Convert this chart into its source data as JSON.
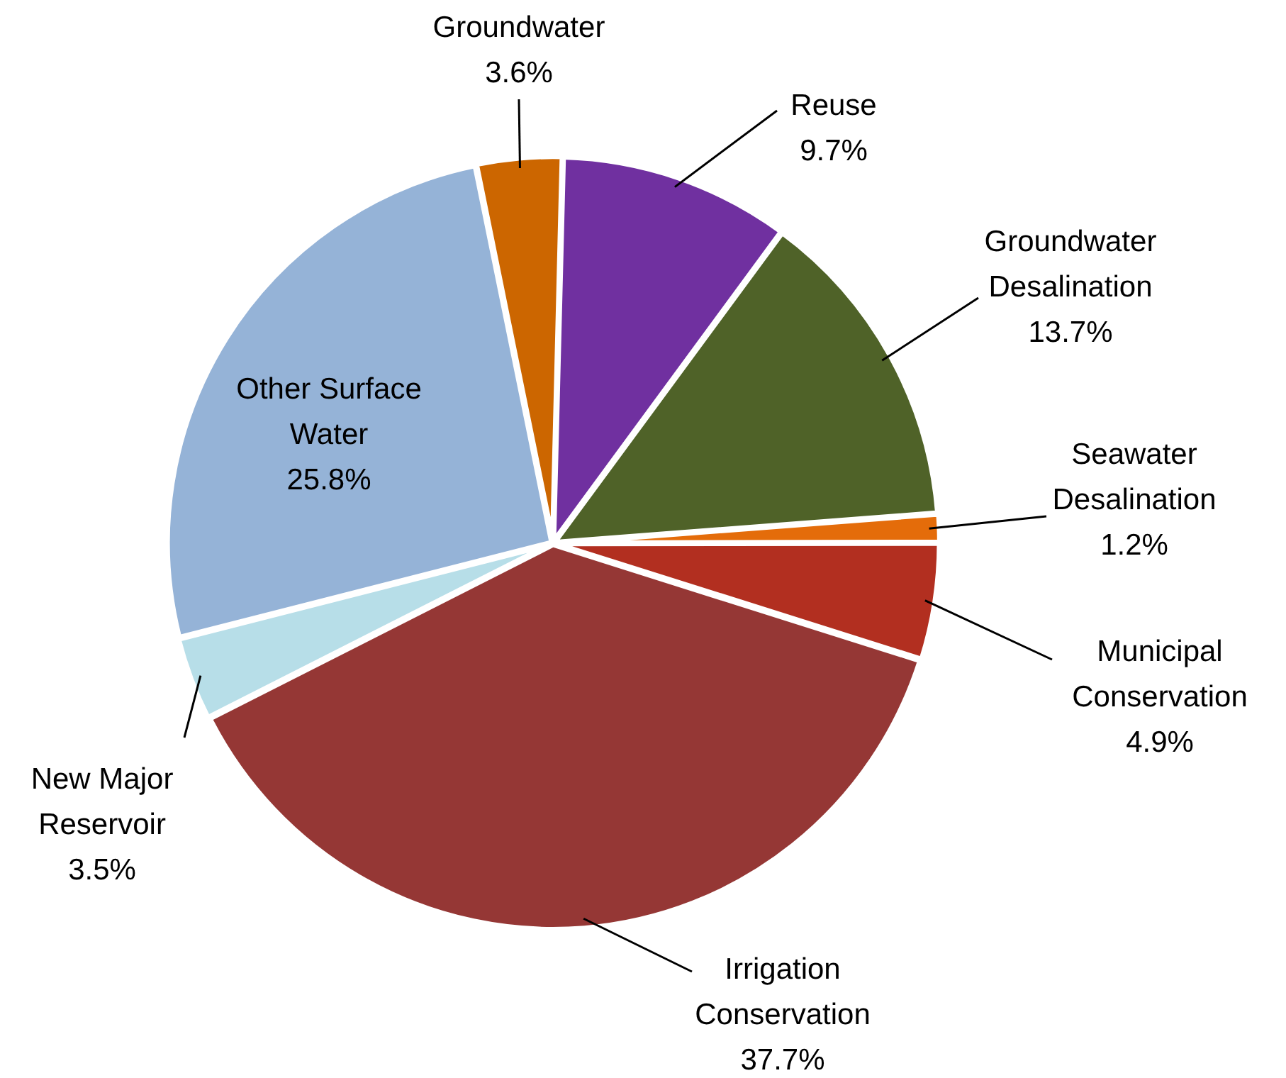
{
  "chart_data": {
    "type": "pie",
    "categories": [
      "Groundwater",
      "Reuse",
      "Groundwater Desalination",
      "Seawater Desalination",
      "Municipal Conservation",
      "Irrigation Conservation",
      "New Major Reservoir",
      "Other Surface Water"
    ],
    "values": [
      3.6,
      9.7,
      13.7,
      1.2,
      4.9,
      37.7,
      3.5,
      25.8
    ],
    "value_labels": [
      "3.6%",
      "9.7%",
      "13.7%",
      "1.2%",
      "4.9%",
      "37.7%",
      "3.5%",
      "25.8%"
    ],
    "colors": [
      "#cc6600",
      "#7030a0",
      "#4f6228",
      "#e46c0a",
      "#b22f20",
      "#953735",
      "#b7dee8",
      "#95b3d7"
    ],
    "legend": false
  }
}
